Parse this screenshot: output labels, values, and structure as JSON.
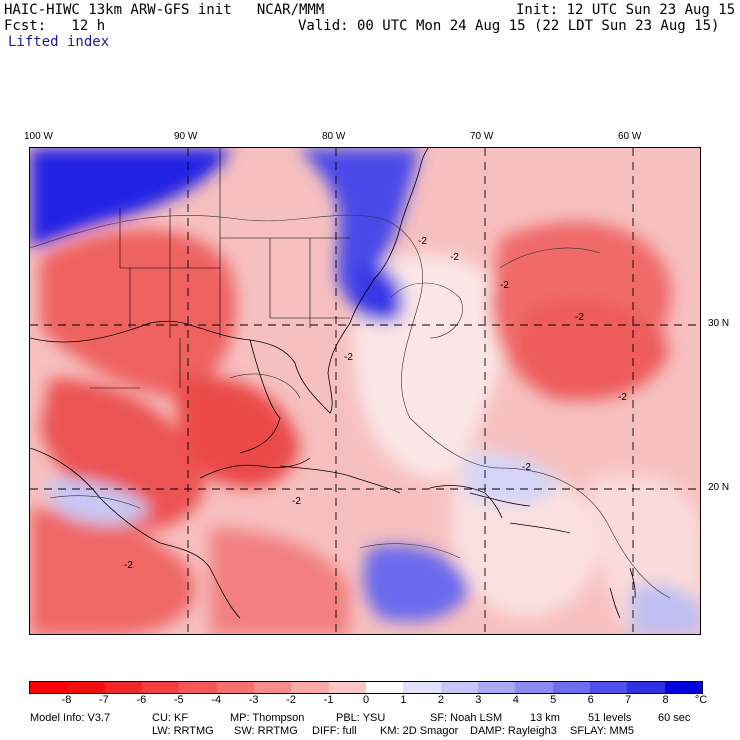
{
  "header": {
    "model_title": "HAIC-HIWC 13km ARW-GFS init   NCAR/MMM",
    "init": "Init: 12 UTC Sun 23 Aug 15",
    "fcst": "Fcst:   12 h",
    "valid": "Valid: 00 UTC Mon 24 Aug 15 (22 LDT Sun 23 Aug 15)",
    "field": "Lifted index"
  },
  "map": {
    "lon_labels": [
      "100 W",
      "90 W",
      "80 W",
      "70 W",
      "60 W"
    ],
    "lat_labels": [
      "30 N",
      "20 N"
    ],
    "contour_labels": [
      "-2",
      "-2",
      "-2",
      "-2",
      "-2",
      "-2",
      "-2",
      "-2",
      "-2"
    ],
    "colors": {
      "strong_neg": "#e8343a",
      "mid_neg": "#f26c6c",
      "weak_neg": "#f9b4b4",
      "neutral": "#fbe9e9",
      "weak_pos": "#c8c8f4",
      "strong_pos": "#1010e0"
    }
  },
  "colorbar": {
    "ticks": [
      "-8",
      "-7",
      "-6",
      "-5",
      "-4",
      "-3",
      "-2",
      "-1",
      "0",
      "1",
      "2",
      "3",
      "4",
      "5",
      "6",
      "7",
      "8"
    ],
    "unit": "°C",
    "colors": [
      "#ff0000",
      "#ee1010",
      "#f02828",
      "#f24040",
      "#f45858",
      "#f67272",
      "#f88c8c",
      "#faa8a8",
      "#fcc6c6",
      "#ffffff",
      "#e2e2fc",
      "#c6c6f8",
      "#aaaaf4",
      "#8c8cf0",
      "#6e6eec",
      "#5050e8",
      "#3030e4",
      "#0000e0"
    ]
  },
  "footer": {
    "line1": [
      "Model Info: V3.7",
      "CU: KF",
      "MP: Thompson",
      "PBL: YSU",
      "SF: Noah LSM",
      "13 km",
      "51 levels",
      "60 sec"
    ],
    "line2": [
      "LW: RRTMG",
      "SW: RRTMG",
      "DIFF: full",
      "KM: 2D Smagor",
      "DAMP: Rayleigh3",
      "SFLAY: MM5"
    ]
  }
}
